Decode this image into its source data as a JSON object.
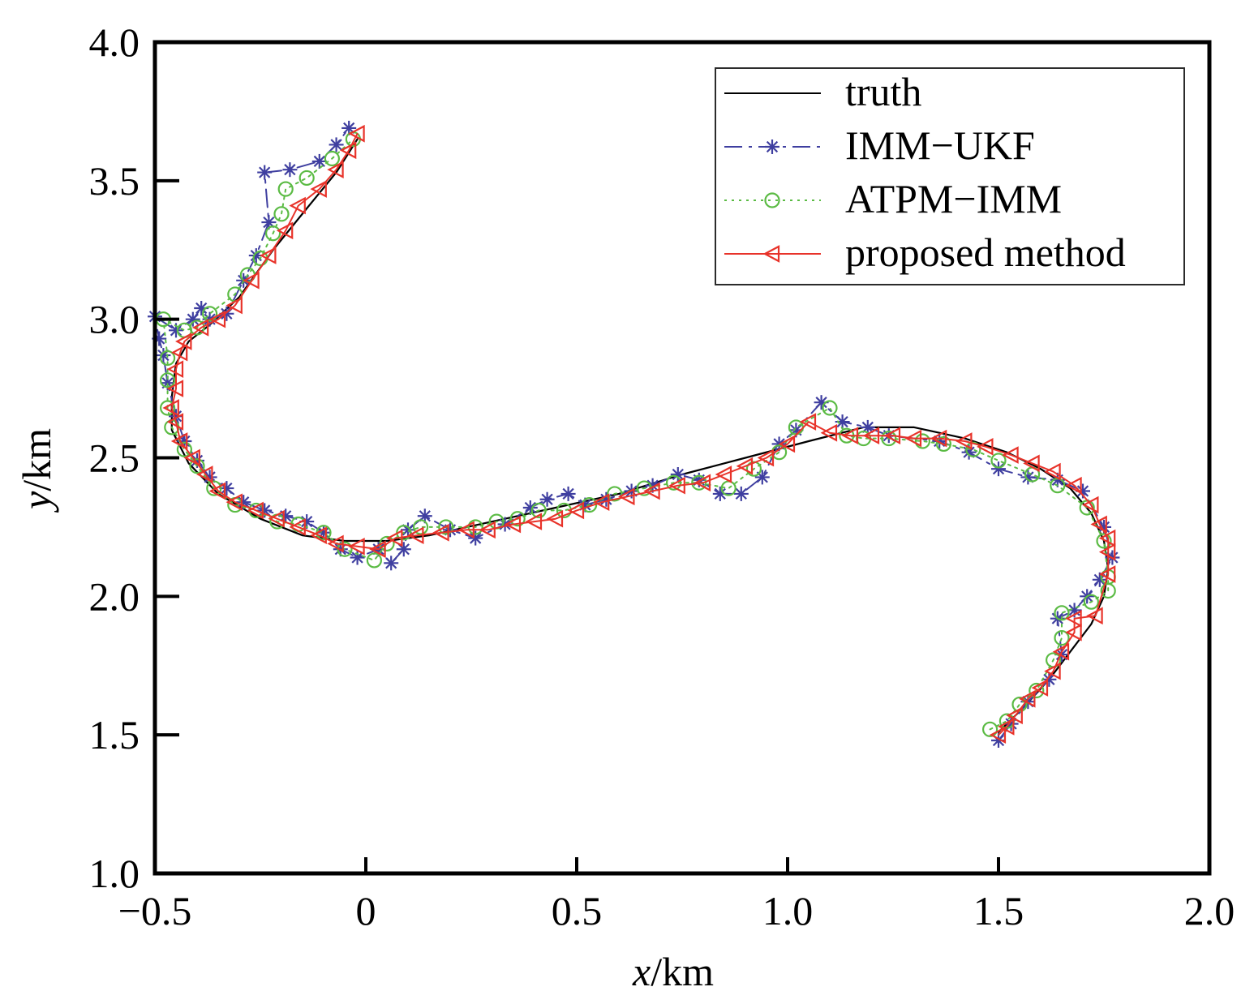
{
  "chart_data": {
    "type": "line",
    "xlabel_var": "x",
    "xlabel_unit": "/km",
    "ylabel_var": "y",
    "ylabel_unit": "/km",
    "xlim": [
      -0.5,
      2.0
    ],
    "ylim": [
      1.0,
      4.0
    ],
    "xticks": [
      -0.5,
      0,
      0.5,
      1.0,
      1.5,
      2.0
    ],
    "xtick_labels": [
      "−0.5",
      "0",
      "0.5",
      "1.0",
      "1.5",
      "2.0"
    ],
    "yticks": [
      1.0,
      1.5,
      2.0,
      2.5,
      3.0,
      3.5,
      4.0
    ],
    "ytick_labels": [
      "1.0",
      "1.5",
      "2.0",
      "2.5",
      "3.0",
      "3.5",
      "4.0"
    ],
    "grid": false,
    "legend_position": "top-right",
    "series": [
      {
        "name": "truth",
        "color": "#000000",
        "line_style": "solid",
        "marker": "none",
        "points": [
          [
            1.5,
            1.51
          ],
          [
            1.56,
            1.6
          ],
          [
            1.62,
            1.7
          ],
          [
            1.67,
            1.8
          ],
          [
            1.72,
            1.9
          ],
          [
            1.75,
            2.0
          ],
          [
            1.76,
            2.1
          ],
          [
            1.75,
            2.2
          ],
          [
            1.72,
            2.3
          ],
          [
            1.67,
            2.39
          ],
          [
            1.6,
            2.46
          ],
          [
            1.52,
            2.52
          ],
          [
            1.42,
            2.57
          ],
          [
            1.3,
            2.61
          ],
          [
            1.18,
            2.61
          ],
          [
            1.05,
            2.56
          ],
          [
            0.9,
            2.5
          ],
          [
            0.75,
            2.44
          ],
          [
            0.6,
            2.37
          ],
          [
            0.45,
            2.32
          ],
          [
            0.3,
            2.27
          ],
          [
            0.15,
            2.22
          ],
          [
            0.05,
            2.2
          ],
          [
            -0.05,
            2.2
          ],
          [
            -0.15,
            2.22
          ],
          [
            -0.25,
            2.28
          ],
          [
            -0.35,
            2.37
          ],
          [
            -0.42,
            2.48
          ],
          [
            -0.46,
            2.6
          ],
          [
            -0.46,
            2.72
          ],
          [
            -0.45,
            2.84
          ],
          [
            -0.42,
            2.92
          ],
          [
            -0.37,
            2.98
          ],
          [
            -0.3,
            3.08
          ],
          [
            -0.22,
            3.25
          ],
          [
            -0.14,
            3.4
          ],
          [
            -0.07,
            3.53
          ],
          [
            -0.02,
            3.65
          ]
        ]
      },
      {
        "name": "IMM−UKF",
        "color": "#3f3fa0",
        "line_style": "dashdot",
        "marker": "asterisk",
        "points": [
          [
            1.5,
            1.48
          ],
          [
            1.53,
            1.54
          ],
          [
            1.57,
            1.62
          ],
          [
            1.62,
            1.7
          ],
          [
            1.65,
            1.79
          ],
          [
            1.64,
            1.92
          ],
          [
            1.68,
            1.95
          ],
          [
            1.71,
            2.0
          ],
          [
            1.74,
            2.06
          ],
          [
            1.77,
            2.14
          ],
          [
            1.75,
            2.25
          ],
          [
            1.7,
            2.38
          ],
          [
            1.64,
            2.42
          ],
          [
            1.57,
            2.43
          ],
          [
            1.5,
            2.46
          ],
          [
            1.43,
            2.52
          ],
          [
            1.36,
            2.56
          ],
          [
            1.24,
            2.58
          ],
          [
            1.19,
            2.61
          ],
          [
            1.13,
            2.63
          ],
          [
            1.08,
            2.7
          ],
          [
            1.02,
            2.6
          ],
          [
            0.98,
            2.55
          ],
          [
            0.94,
            2.43
          ],
          [
            0.89,
            2.37
          ],
          [
            0.84,
            2.37
          ],
          [
            0.79,
            2.42
          ],
          [
            0.74,
            2.44
          ],
          [
            0.68,
            2.4
          ],
          [
            0.63,
            2.38
          ],
          [
            0.57,
            2.35
          ],
          [
            0.52,
            2.33
          ],
          [
            0.48,
            2.37
          ],
          [
            0.43,
            2.35
          ],
          [
            0.39,
            2.32
          ],
          [
            0.33,
            2.26
          ],
          [
            0.26,
            2.21
          ],
          [
            0.2,
            2.24
          ],
          [
            0.14,
            2.29
          ],
          [
            0.1,
            2.24
          ],
          [
            0.09,
            2.17
          ],
          [
            0.06,
            2.12
          ],
          [
            0.03,
            2.17
          ],
          [
            -0.02,
            2.14
          ],
          [
            -0.06,
            2.17
          ],
          [
            -0.1,
            2.23
          ],
          [
            -0.14,
            2.27
          ],
          [
            -0.19,
            2.29
          ],
          [
            -0.24,
            2.31
          ],
          [
            -0.29,
            2.34
          ],
          [
            -0.33,
            2.39
          ],
          [
            -0.37,
            2.43
          ],
          [
            -0.4,
            2.49
          ],
          [
            -0.43,
            2.56
          ],
          [
            -0.45,
            2.65
          ],
          [
            -0.47,
            2.77
          ],
          [
            -0.48,
            2.87
          ],
          [
            -0.49,
            2.93
          ],
          [
            -0.5,
            3.01
          ],
          [
            -0.45,
            2.96
          ],
          [
            -0.41,
            3.0
          ],
          [
            -0.39,
            3.04
          ],
          [
            -0.37,
            3.0
          ],
          [
            -0.33,
            3.02
          ],
          [
            -0.29,
            3.14
          ],
          [
            -0.26,
            3.23
          ],
          [
            -0.23,
            3.35
          ],
          [
            -0.24,
            3.53
          ],
          [
            -0.18,
            3.54
          ],
          [
            -0.11,
            3.57
          ],
          [
            -0.07,
            3.63
          ],
          [
            -0.04,
            3.69
          ]
        ]
      },
      {
        "name": "ATPM−IMM",
        "color": "#5bbb44",
        "line_style": "dotted",
        "marker": "circle",
        "points": [
          [
            1.48,
            1.52
          ],
          [
            1.52,
            1.55
          ],
          [
            1.55,
            1.61
          ],
          [
            1.59,
            1.66
          ],
          [
            1.63,
            1.77
          ],
          [
            1.65,
            1.85
          ],
          [
            1.65,
            1.94
          ],
          [
            1.72,
            1.98
          ],
          [
            1.76,
            2.02
          ],
          [
            1.76,
            2.07
          ],
          [
            1.75,
            2.2
          ],
          [
            1.71,
            2.32
          ],
          [
            1.64,
            2.4
          ],
          [
            1.58,
            2.44
          ],
          [
            1.5,
            2.49
          ],
          [
            1.44,
            2.53
          ],
          [
            1.37,
            2.55
          ],
          [
            1.32,
            2.56
          ],
          [
            1.24,
            2.57
          ],
          [
            1.18,
            2.57
          ],
          [
            1.14,
            2.58
          ],
          [
            1.1,
            2.68
          ],
          [
            1.02,
            2.61
          ],
          [
            0.98,
            2.52
          ],
          [
            0.92,
            2.46
          ],
          [
            0.86,
            2.39
          ],
          [
            0.79,
            2.41
          ],
          [
            0.73,
            2.41
          ],
          [
            0.66,
            2.39
          ],
          [
            0.59,
            2.37
          ],
          [
            0.53,
            2.33
          ],
          [
            0.47,
            2.31
          ],
          [
            0.41,
            2.31
          ],
          [
            0.36,
            2.28
          ],
          [
            0.31,
            2.27
          ],
          [
            0.26,
            2.25
          ],
          [
            0.19,
            2.25
          ],
          [
            0.13,
            2.25
          ],
          [
            0.09,
            2.23
          ],
          [
            0.05,
            2.19
          ],
          [
            0.02,
            2.13
          ],
          [
            -0.05,
            2.17
          ],
          [
            -0.1,
            2.23
          ],
          [
            -0.16,
            2.26
          ],
          [
            -0.21,
            2.27
          ],
          [
            -0.26,
            2.31
          ],
          [
            -0.31,
            2.33
          ],
          [
            -0.36,
            2.39
          ],
          [
            -0.4,
            2.47
          ],
          [
            -0.43,
            2.53
          ],
          [
            -0.46,
            2.61
          ],
          [
            -0.47,
            2.68
          ],
          [
            -0.47,
            2.78
          ],
          [
            -0.47,
            2.86
          ],
          [
            -0.48,
            3.0
          ],
          [
            -0.43,
            2.96
          ],
          [
            -0.4,
            2.97
          ],
          [
            -0.37,
            3.02
          ],
          [
            -0.31,
            3.09
          ],
          [
            -0.28,
            3.16
          ],
          [
            -0.25,
            3.22
          ],
          [
            -0.22,
            3.31
          ],
          [
            -0.2,
            3.38
          ],
          [
            -0.19,
            3.47
          ],
          [
            -0.14,
            3.51
          ],
          [
            -0.08,
            3.58
          ],
          [
            -0.03,
            3.65
          ]
        ]
      },
      {
        "name": "proposed method",
        "color": "#e8332a",
        "line_style": "solid",
        "marker": "triangle-left",
        "points": [
          [
            1.5,
            1.5
          ],
          [
            1.52,
            1.53
          ],
          [
            1.54,
            1.57
          ],
          [
            1.57,
            1.63
          ],
          [
            1.6,
            1.67
          ],
          [
            1.63,
            1.73
          ],
          [
            1.65,
            1.8
          ],
          [
            1.68,
            1.87
          ],
          [
            1.68,
            1.92
          ],
          [
            1.73,
            1.93
          ],
          [
            1.76,
            2.08
          ],
          [
            1.76,
            2.16
          ],
          [
            1.76,
            2.21
          ],
          [
            1.74,
            2.26
          ],
          [
            1.72,
            2.33
          ],
          [
            1.68,
            2.4
          ],
          [
            1.63,
            2.45
          ],
          [
            1.58,
            2.48
          ],
          [
            1.53,
            2.51
          ],
          [
            1.47,
            2.54
          ],
          [
            1.42,
            2.56
          ],
          [
            1.36,
            2.57
          ],
          [
            1.3,
            2.57
          ],
          [
            1.25,
            2.58
          ],
          [
            1.2,
            2.58
          ],
          [
            1.15,
            2.58
          ],
          [
            1.1,
            2.59
          ],
          [
            1.05,
            2.63
          ],
          [
            1.0,
            2.55
          ],
          [
            0.95,
            2.5
          ],
          [
            0.9,
            2.47
          ],
          [
            0.85,
            2.44
          ],
          [
            0.8,
            2.41
          ],
          [
            0.74,
            2.4
          ],
          [
            0.68,
            2.38
          ],
          [
            0.62,
            2.36
          ],
          [
            0.56,
            2.34
          ],
          [
            0.5,
            2.31
          ],
          [
            0.45,
            2.28
          ],
          [
            0.4,
            2.27
          ],
          [
            0.35,
            2.26
          ],
          [
            0.29,
            2.24
          ],
          [
            0.24,
            2.24
          ],
          [
            0.18,
            2.23
          ],
          [
            0.12,
            2.22
          ],
          [
            0.07,
            2.21
          ],
          [
            0.03,
            2.17
          ],
          [
            -0.02,
            2.18
          ],
          [
            -0.07,
            2.19
          ],
          [
            -0.11,
            2.22
          ],
          [
            -0.16,
            2.25
          ],
          [
            -0.21,
            2.28
          ],
          [
            -0.26,
            2.31
          ],
          [
            -0.31,
            2.34
          ],
          [
            -0.35,
            2.38
          ],
          [
            -0.38,
            2.44
          ],
          [
            -0.41,
            2.5
          ],
          [
            -0.44,
            2.56
          ],
          [
            -0.45,
            2.63
          ],
          [
            -0.46,
            2.68
          ],
          [
            -0.45,
            2.75
          ],
          [
            -0.45,
            2.82
          ],
          [
            -0.44,
            2.88
          ],
          [
            -0.43,
            2.92
          ],
          [
            -0.39,
            2.97
          ],
          [
            -0.35,
            3.0
          ],
          [
            -0.31,
            3.05
          ],
          [
            -0.27,
            3.14
          ],
          [
            -0.23,
            3.23
          ],
          [
            -0.19,
            3.32
          ],
          [
            -0.16,
            3.41
          ],
          [
            -0.11,
            3.47
          ],
          [
            -0.07,
            3.54
          ],
          [
            -0.04,
            3.61
          ],
          [
            -0.02,
            3.67
          ]
        ]
      }
    ]
  }
}
